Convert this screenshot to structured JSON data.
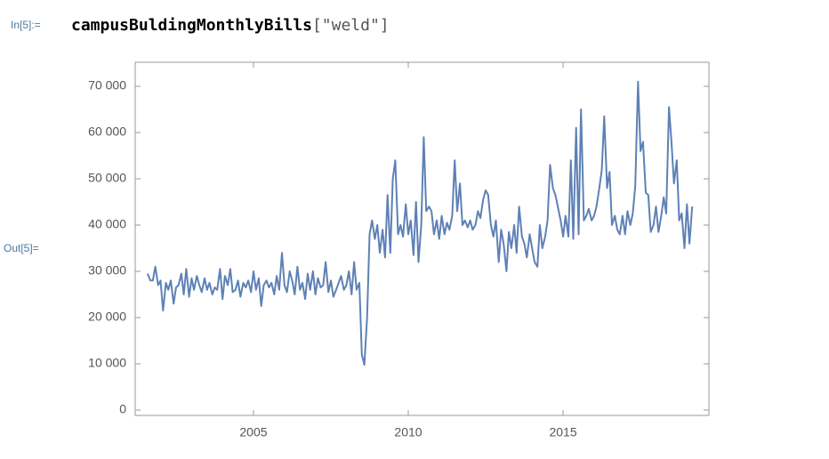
{
  "input_label": "In[5]:=",
  "code": {
    "function": "campusBuldingMonthlyBills",
    "args": "[\"weld\"]"
  },
  "output_label": "Out[5]=",
  "chart_data": {
    "type": "line",
    "color": "#5e81b5",
    "x": [
      2001.58,
      2001.67,
      2001.75,
      2001.83,
      2001.92,
      2002,
      2002.08,
      2002.17,
      2002.25,
      2002.33,
      2002.42,
      2002.5,
      2002.58,
      2002.67,
      2002.75,
      2002.83,
      2002.92,
      2003,
      2003.08,
      2003.17,
      2003.25,
      2003.33,
      2003.42,
      2003.5,
      2003.58,
      2003.67,
      2003.75,
      2003.83,
      2003.92,
      2004,
      2004.08,
      2004.17,
      2004.25,
      2004.33,
      2004.42,
      2004.5,
      2004.58,
      2004.67,
      2004.75,
      2004.83,
      2004.92,
      2005,
      2005.08,
      2005.17,
      2005.25,
      2005.33,
      2005.42,
      2005.5,
      2005.58,
      2005.67,
      2005.75,
      2005.83,
      2005.92,
      2006,
      2006.08,
      2006.17,
      2006.25,
      2006.33,
      2006.42,
      2006.5,
      2006.58,
      2006.67,
      2006.75,
      2006.83,
      2006.92,
      2007,
      2007.08,
      2007.17,
      2007.25,
      2007.33,
      2007.42,
      2007.5,
      2007.58,
      2007.67,
      2007.75,
      2007.83,
      2007.92,
      2008,
      2008.08,
      2008.17,
      2008.25,
      2008.33,
      2008.42,
      2008.5,
      2008.58,
      2008.67,
      2008.75,
      2008.83,
      2008.92,
      2009,
      2009.08,
      2009.17,
      2009.25,
      2009.33,
      2009.42,
      2009.5,
      2009.58,
      2009.67,
      2009.75,
      2009.83,
      2009.92,
      2010,
      2010.08,
      2010.17,
      2010.25,
      2010.33,
      2010.42,
      2010.5,
      2010.58,
      2010.67,
      2010.75,
      2010.83,
      2010.92,
      2011,
      2011.08,
      2011.17,
      2011.25,
      2011.33,
      2011.42,
      2011.5,
      2011.58,
      2011.67,
      2011.75,
      2011.83,
      2011.92,
      2012,
      2012.08,
      2012.17,
      2012.25,
      2012.33,
      2012.42,
      2012.5,
      2012.58,
      2012.67,
      2012.75,
      2012.83,
      2012.92,
      2013,
      2013.08,
      2013.17,
      2013.25,
      2013.33,
      2013.42,
      2013.5,
      2013.58,
      2013.67,
      2013.75,
      2013.83,
      2013.92,
      2014,
      2014.08,
      2014.17,
      2014.25,
      2014.33,
      2014.42,
      2014.5,
      2014.58,
      2014.67,
      2014.75,
      2014.83,
      2014.92,
      2015,
      2015.08,
      2015.17,
      2015.25,
      2015.33,
      2015.42,
      2015.5,
      2015.58,
      2015.67,
      2015.75,
      2015.83,
      2015.92,
      2016,
      2016.08,
      2016.17,
      2016.25,
      2016.33,
      2016.42,
      2016.5,
      2016.58,
      2016.67,
      2016.75,
      2016.83,
      2016.92,
      2017,
      2017.08,
      2017.17,
      2017.25,
      2017.33,
      2017.42,
      2017.5,
      2017.58,
      2017.67,
      2017.75,
      2017.83,
      2017.92,
      2018,
      2018.08,
      2018.17,
      2018.25,
      2018.33,
      2018.42,
      2018.5,
      2018.58,
      2018.67,
      2018.75,
      2018.83,
      2018.92,
      2019,
      2019.08,
      2019.17
    ],
    "values": [
      29500,
      28000,
      28000,
      31000,
      27000,
      28000,
      21500,
      27500,
      26000,
      28000,
      23000,
      26500,
      27000,
      29500,
      25000,
      30500,
      24500,
      28500,
      26000,
      29000,
      27000,
      25500,
      28500,
      26000,
      27500,
      25000,
      26500,
      26000,
      30500,
      24000,
      29000,
      27000,
      30500,
      25500,
      26000,
      28000,
      24500,
      27500,
      26500,
      28000,
      25500,
      30000,
      26000,
      28500,
      22500,
      27000,
      28000,
      26500,
      27500,
      25000,
      29000,
      26000,
      34000,
      27000,
      25500,
      30000,
      28000,
      25000,
      31000,
      26000,
      27500,
      24000,
      29500,
      26000,
      30000,
      25000,
      28500,
      26500,
      27000,
      32000,
      25500,
      28000,
      24500,
      26000,
      27500,
      29000,
      26000,
      27000,
      30000,
      25000,
      32000,
      26000,
      27500,
      12000,
      9800,
      20000,
      38000,
      41000,
      37000,
      40000,
      34000,
      39000,
      33000,
      46500,
      34000,
      50000,
      54000,
      38000,
      40000,
      37500,
      44500,
      38000,
      41000,
      33500,
      45000,
      32000,
      40000,
      59000,
      43000,
      44000,
      43000,
      38000,
      41000,
      37000,
      42000,
      38000,
      40500,
      39000,
      42000,
      54000,
      43000,
      49000,
      40000,
      41000,
      39500,
      41000,
      39000,
      40000,
      43000,
      41500,
      45500,
      47500,
      46500,
      40000,
      37500,
      41000,
      32000,
      39000,
      36000,
      30000,
      38500,
      35000,
      40000,
      34000,
      44000,
      37500,
      36000,
      33000,
      38000,
      35000,
      32000,
      31000,
      40000,
      35000,
      37500,
      41000,
      53000,
      48000,
      46500,
      44000,
      41000,
      37500,
      42000,
      37500,
      54000,
      37000,
      61000,
      38000,
      65000,
      41000,
      42000,
      43500,
      41000,
      42000,
      44000,
      48000,
      52000,
      63500,
      48000,
      51500,
      40000,
      42000,
      39000,
      38000,
      42000,
      38000,
      43000,
      40000,
      42500,
      48500,
      71000,
      56000,
      58000,
      47000,
      46500,
      38500,
      40000,
      44000,
      38500,
      42000,
      46000,
      42500,
      65500,
      58000,
      49000,
      54000,
      41000,
      42500,
      35000,
      44500,
      36000,
      44000
    ],
    "xlim": [
      2001.18,
      2019.71
    ],
    "xticks": [
      2005,
      2010,
      2015
    ],
    "ylim": [
      -1150,
      75200
    ],
    "yticks": [
      0,
      {
        "value": 10000,
        "label": "10 000"
      },
      {
        "value": 20000,
        "label": "20 000"
      },
      {
        "value": 30000,
        "label": "30 000"
      },
      {
        "value": 40000,
        "label": "40 000"
      },
      {
        "value": 50000,
        "label": "50 000"
      },
      {
        "value": 60000,
        "label": "60 000"
      },
      {
        "value": 70000,
        "label": "70 000"
      }
    ]
  }
}
